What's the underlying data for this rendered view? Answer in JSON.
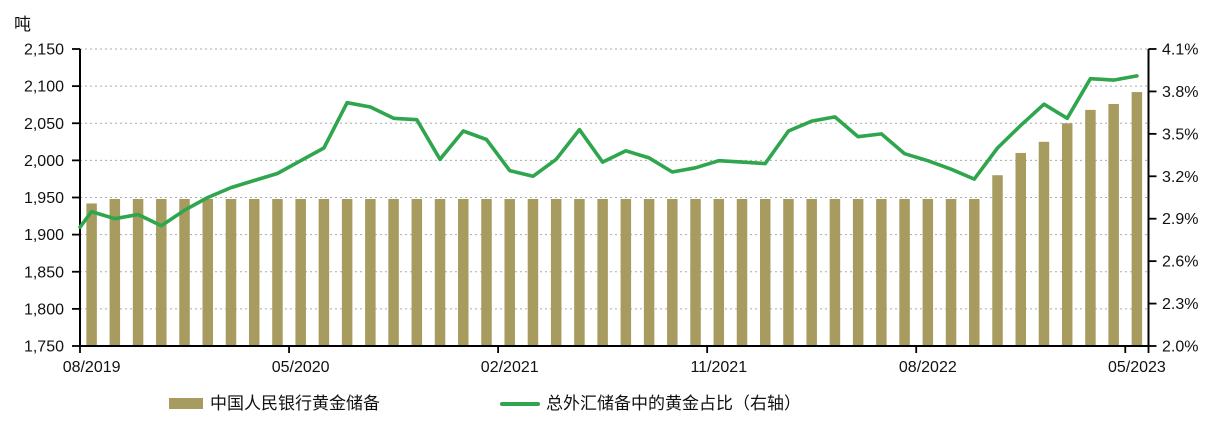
{
  "colors": {
    "bar": "#a89b60",
    "line": "#2fa64d",
    "grid": "#ababab",
    "axis": "#000000",
    "text": "#111111"
  },
  "legend": {
    "items": [
      {
        "label": "中国人民银行黄金储备",
        "swatch": "bar"
      },
      {
        "label": "总外汇储备中的黄金占比（右轴）",
        "swatch": "line"
      }
    ]
  },
  "chart_data": {
    "type": "bar+line combo (dual axis)",
    "title": "",
    "categories": [
      "08/2019",
      "09/2019",
      "10/2019",
      "11/2019",
      "12/2019",
      "01/2020",
      "02/2020",
      "03/2020",
      "04/2020",
      "05/2020",
      "06/2020",
      "07/2020",
      "08/2020",
      "09/2020",
      "10/2020",
      "11/2020",
      "12/2020",
      "01/2021",
      "02/2021",
      "03/2021",
      "04/2021",
      "05/2021",
      "06/2021",
      "07/2021",
      "08/2021",
      "09/2021",
      "10/2021",
      "11/2021",
      "12/2021",
      "01/2022",
      "02/2022",
      "03/2022",
      "04/2022",
      "05/2022",
      "06/2022",
      "07/2022",
      "08/2022",
      "09/2022",
      "10/2022",
      "11/2022",
      "12/2022",
      "01/2023",
      "02/2023",
      "03/2023",
      "04/2023",
      "05/2023"
    ],
    "series": [
      {
        "name": "中国人民银行黄金储备",
        "type": "bar",
        "axis": "left",
        "unit": "吨",
        "color_key": "bar",
        "values": [
          1942,
          1948,
          1948,
          1948,
          1948,
          1948,
          1948,
          1948,
          1948,
          1948,
          1948,
          1948,
          1948,
          1948,
          1948,
          1948,
          1948,
          1948,
          1948,
          1948,
          1948,
          1948,
          1948,
          1948,
          1948,
          1948,
          1948,
          1948,
          1948,
          1948,
          1948,
          1948,
          1948,
          1948,
          1948,
          1948,
          1948,
          1948,
          1948,
          1980,
          2010,
          2025,
          2050,
          2068,
          2076,
          2092
        ]
      },
      {
        "name": "总外汇储备中的黄金占比（右轴）",
        "type": "line",
        "axis": "right",
        "unit": "%",
        "color_key": "line",
        "values": [
          2.95,
          2.9,
          2.93,
          2.85,
          2.96,
          3.05,
          3.12,
          3.17,
          3.22,
          3.31,
          3.4,
          3.72,
          3.69,
          3.61,
          3.6,
          3.32,
          3.52,
          3.46,
          3.24,
          3.2,
          3.32,
          3.53,
          3.3,
          3.38,
          3.33,
          3.23,
          3.26,
          3.31,
          3.3,
          3.29,
          3.52,
          3.59,
          3.62,
          3.48,
          3.5,
          3.36,
          3.31,
          3.25,
          3.18,
          3.4,
          3.56,
          3.71,
          3.61,
          3.89,
          3.88,
          3.91
        ]
      }
    ],
    "line_edge_start": 2.84,
    "left_axis": {
      "title": "吨",
      "min": 1750,
      "max": 2150,
      "step": 50,
      "tick_labels": [
        "1,750",
        "1,800",
        "1,850",
        "1,900",
        "1,950",
        "2,000",
        "2,050",
        "2,100",
        "2,150"
      ]
    },
    "right_axis": {
      "min": 2.0,
      "max": 4.1,
      "step": 0.3,
      "tick_labels": [
        "2.0%",
        "2.3%",
        "2.6%",
        "2.9%",
        "3.2%",
        "3.5%",
        "3.8%",
        "4.1%"
      ]
    },
    "x_axis": {
      "tick_labels": [
        "08/2019",
        "05/2020",
        "02/2021",
        "11/2021",
        "08/2022",
        "05/2023"
      ],
      "label_every": 9
    },
    "grid": "horizontal dashed",
    "legend_position": "bottom"
  }
}
